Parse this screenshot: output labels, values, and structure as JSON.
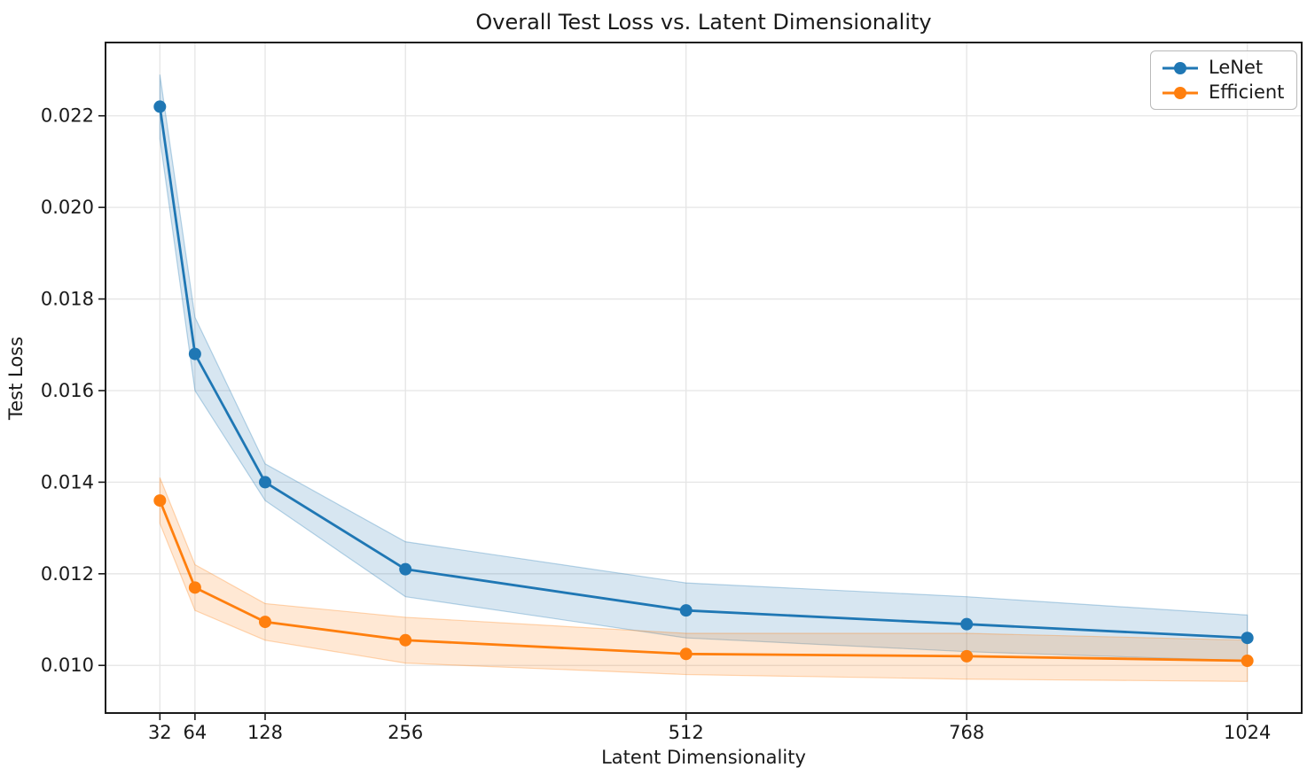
{
  "chart_data": {
    "type": "line",
    "title": "Overall Test Loss vs. Latent Dimensionality",
    "xlabel": "Latent Dimensionality",
    "ylabel": "Test Loss",
    "grid": true,
    "legend_position": "upper right",
    "x": [
      32,
      64,
      128,
      256,
      512,
      768,
      1024
    ],
    "x_ticks": [
      "32",
      "64",
      "128",
      "256",
      "512",
      "768",
      "1024"
    ],
    "y_tick_values": [
      0.01,
      0.012,
      0.014,
      0.016,
      0.018,
      0.02,
      0.022
    ],
    "y_ticks": [
      "0.010",
      "0.012",
      "0.014",
      "0.016",
      "0.018",
      "0.020",
      "0.022"
    ],
    "xlim": [
      -17.6,
      1073.6
    ],
    "ylim": [
      0.00896,
      0.0236
    ],
    "series": [
      {
        "name": "LeNet",
        "color": "#1f77b4",
        "marker": "circle",
        "values": [
          0.0222,
          0.0168,
          0.014,
          0.0121,
          0.0112,
          0.0109,
          0.0106
        ],
        "band": [
          0.0007,
          0.0008,
          0.0004,
          0.0006,
          0.0006,
          0.0006,
          0.0005
        ]
      },
      {
        "name": "Efficient",
        "color": "#ff7f0e",
        "marker": "circle",
        "values": [
          0.0136,
          0.0117,
          0.01095,
          0.01055,
          0.01025,
          0.0102,
          0.0101
        ],
        "band": [
          0.0005,
          0.0005,
          0.0004,
          0.0005,
          0.00045,
          0.0005,
          0.00045
        ]
      }
    ],
    "colors": {
      "background": "#ffffff",
      "grid": "#e5e5e5",
      "spine": "#1a1a1a",
      "text": "#1a1a1a"
    }
  }
}
